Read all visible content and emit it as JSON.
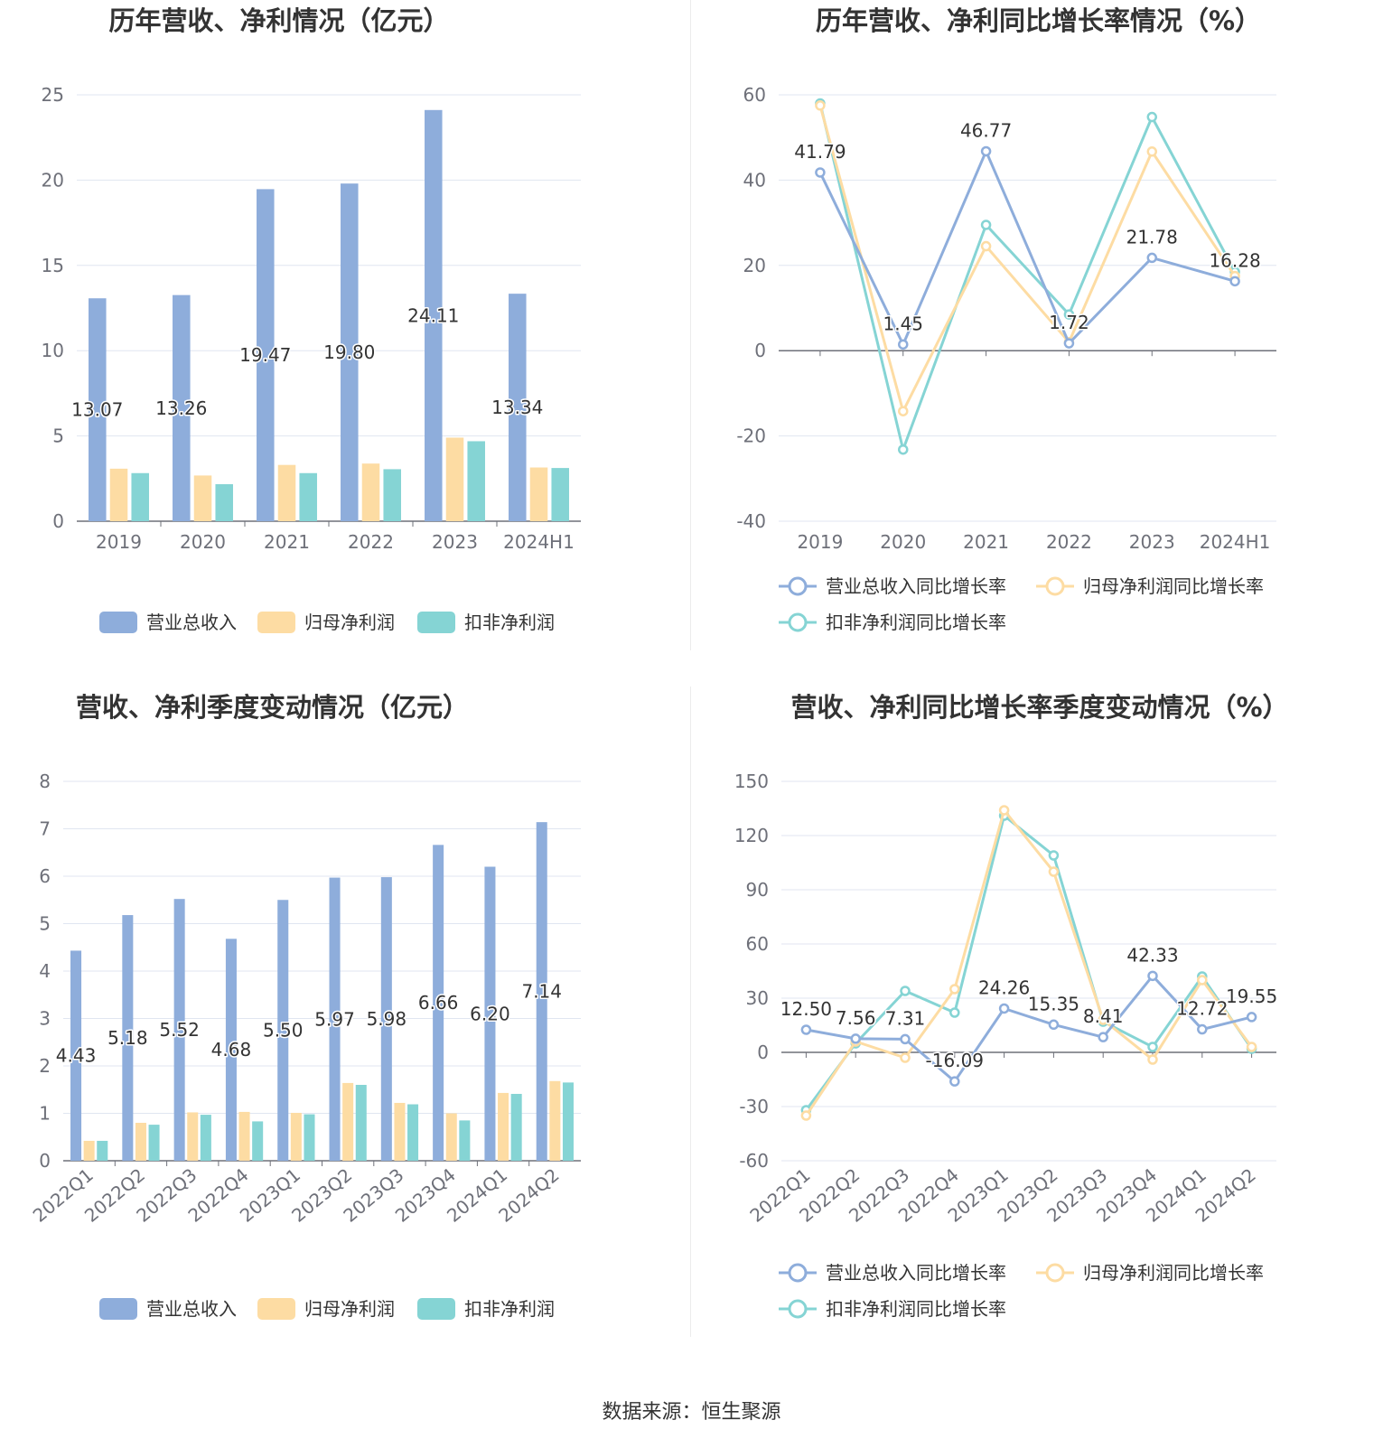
{
  "colors": {
    "revenue": "#8eaddb",
    "net_profit": "#fddca3",
    "deducted_profit": "#85d4d4"
  },
  "charts": {
    "annual_amount": {
      "title": "历年营收、净利情况（亿元）",
      "legend": [
        "营业总收入",
        "归母净利润",
        "扣非净利润"
      ]
    },
    "annual_growth": {
      "title": "历年营收、净利同比增长率情况（%）",
      "legend": [
        "营业总收入同比增长率",
        "归母净利润同比增长率",
        "扣非净利润同比增长率"
      ]
    },
    "quarterly_amount": {
      "title": "营收、净利季度变动情况（亿元）",
      "legend": [
        "营业总收入",
        "归母净利润",
        "扣非净利润"
      ]
    },
    "quarterly_growth": {
      "title": "营收、净利同比增长率季度变动情况（%）",
      "legend": [
        "营业总收入同比增长率",
        "归母净利润同比增长率",
        "扣非净利润同比增长率"
      ]
    }
  },
  "chart_data": [
    {
      "type": "bar",
      "title": "历年营收、净利情况（亿元）",
      "categories": [
        "2019",
        "2020",
        "2021",
        "2022",
        "2023",
        "2024H1"
      ],
      "ylim": [
        0,
        25
      ],
      "yticks": [
        0,
        5,
        10,
        15,
        20,
        25
      ],
      "series": [
        {
          "name": "营业总收入",
          "values": [
            13.07,
            13.26,
            19.47,
            19.8,
            24.11,
            13.34
          ],
          "labels": [
            "13.07",
            "13.26",
            "19.47",
            "19.80",
            "24.11",
            "13.34"
          ]
        },
        {
          "name": "归母净利润",
          "values": [
            3.08,
            2.68,
            3.3,
            3.38,
            4.9,
            3.15
          ]
        },
        {
          "name": "扣非净利润",
          "values": [
            2.82,
            2.17,
            2.82,
            3.05,
            4.69,
            3.12
          ]
        }
      ],
      "grid": true,
      "legend_position": "bottom"
    },
    {
      "type": "line",
      "title": "历年营收、净利同比增长率情况（%）",
      "categories": [
        "2019",
        "2020",
        "2021",
        "2022",
        "2023",
        "2024H1"
      ],
      "ylim": [
        -40,
        60
      ],
      "yticks": [
        -40,
        -20,
        0,
        20,
        40,
        60
      ],
      "series": [
        {
          "name": "营业总收入同比增长率",
          "values": [
            41.79,
            1.45,
            46.77,
            1.72,
            21.78,
            16.28
          ],
          "labels": [
            "41.79",
            "1.45",
            "46.77",
            "1.72",
            "21.78",
            "16.28"
          ]
        },
        {
          "name": "归母净利润同比增长率",
          "values": [
            57.5,
            -14.2,
            24.5,
            2.0,
            46.7,
            17.5
          ]
        },
        {
          "name": "扣非净利润同比增长率",
          "values": [
            58.0,
            -23.2,
            29.5,
            8.5,
            54.8,
            18.5
          ]
        }
      ],
      "grid": true,
      "legend_position": "bottom"
    },
    {
      "type": "bar",
      "title": "营收、净利季度变动情况（亿元）",
      "categories": [
        "2022Q1",
        "2022Q2",
        "2022Q3",
        "2022Q4",
        "2023Q1",
        "2023Q2",
        "2023Q3",
        "2023Q4",
        "2024Q1",
        "2024Q2"
      ],
      "ylim": [
        0,
        8
      ],
      "yticks": [
        0,
        1,
        2,
        3,
        4,
        5,
        6,
        7,
        8
      ],
      "series": [
        {
          "name": "营业总收入",
          "values": [
            4.43,
            5.18,
            5.52,
            4.68,
            5.5,
            5.97,
            5.98,
            6.66,
            6.2,
            7.14
          ],
          "labels": [
            "4.43",
            "5.18",
            "5.52",
            "4.68",
            "5.50",
            "5.97",
            "5.98",
            "6.66",
            "6.20",
            "7.14"
          ]
        },
        {
          "name": "归母净利润",
          "values": [
            0.42,
            0.8,
            1.02,
            1.03,
            1.01,
            1.64,
            1.22,
            1.0,
            1.43,
            1.68
          ]
        },
        {
          "name": "扣非净利润",
          "values": [
            0.42,
            0.76,
            0.97,
            0.83,
            0.98,
            1.6,
            1.19,
            0.85,
            1.41,
            1.65
          ]
        }
      ],
      "grid": true,
      "legend_position": "bottom"
    },
    {
      "type": "line",
      "title": "营收、净利同比增长率季度变动情况（%）",
      "categories": [
        "2022Q1",
        "2022Q2",
        "2022Q3",
        "2022Q4",
        "2023Q1",
        "2023Q2",
        "2023Q3",
        "2023Q4",
        "2024Q1",
        "2024Q2"
      ],
      "ylim": [
        -60,
        150
      ],
      "yticks": [
        -60,
        -30,
        0,
        30,
        60,
        90,
        120,
        150
      ],
      "series": [
        {
          "name": "营业总收入同比增长率",
          "values": [
            12.5,
            7.56,
            7.31,
            -16.09,
            24.26,
            15.35,
            8.41,
            42.33,
            12.72,
            19.55
          ],
          "labels": [
            "12.50",
            "7.56",
            "7.31",
            "-16.09",
            "24.26",
            "15.35",
            "8.41",
            "42.33",
            "12.72",
            "19.55"
          ]
        },
        {
          "name": "归母净利润同比增长率",
          "values": [
            -35,
            6,
            -3,
            35,
            134,
            100,
            18,
            -4,
            40,
            3
          ]
        },
        {
          "name": "扣非净利润同比增长率",
          "values": [
            -32,
            5,
            34,
            22,
            131,
            109,
            17,
            3,
            42,
            2
          ]
        }
      ],
      "grid": true,
      "legend_position": "bottom"
    }
  ],
  "footer": {
    "source": "数据来源：恒生聚源"
  }
}
